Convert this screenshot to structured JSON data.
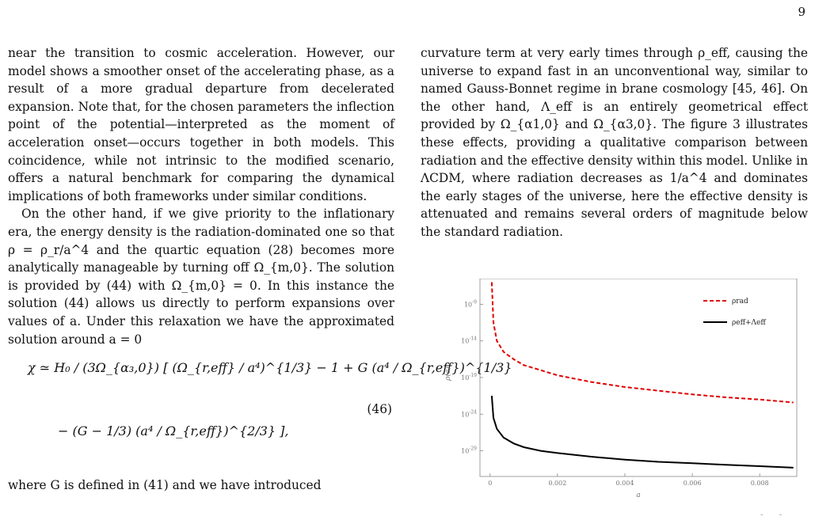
{
  "page": {
    "number": "9"
  },
  "left_column": {
    "para1": "near the transition to cosmic acceleration. However, our model shows a smoother onset of the accelerating phase, as a result of a more gradual departure from decelerated expansion. Note that, for the chosen parameters the inflection point of the potential—interpreted as the moment of acceleration onset—occurs together in both models. This coincidence, while not intrinsic to the modified scenario, offers a natural benchmark for comparing the dynamical implications of both frameworks under similar conditions.",
    "para2": "On the other hand, if we give priority to the inflationary era, the energy density is the radiation-dominated one so that ρ = ρ_r/a^4 and the quartic equation (28) becomes more analytically manageable by turning off Ω_{m,0}. The solution is provided by (44) with Ω_{m,0} = 0. In this instance the solution (44) allows us directly to perform expansions over values of a. Under this relaxation we have the approximated solution around a = 0",
    "equation_line1": "χ ≃ H₀ / (3Ω_{α₃,0}) [ (Ω_{r,eff} / a⁴)^{1/3} − 1 + G (a⁴ / Ω_{r,eff})^{1/3}",
    "equation_line2": "− (G − 1/3) (a⁴ / Ω_{r,eff})^{2/3} ],",
    "equation_number": "(46)",
    "para3": "where G is defined in (41) and we have introduced"
  },
  "right_column": {
    "para1": "curvature term at very early times through ρ_eff, causing the universe to expand fast in an unconventional way, similar to named Gauss-Bonnet regime in brane cosmology [45, 46]. On the other hand, Λ_eff is an entirely geometrical effect provided by Ω_{α1,0} and Ω_{α3,0}. The figure 3 illustrates these effects, providing a qualitative comparison between radiation and the effective density within this model. Unlike in ΛCDM, where radiation decreases as 1/a^4 and dominates the early stages of the universe, here the effective density is attenuated and remains several orders of magnitude below the standard radiation."
  },
  "chart_data": {
    "type": "line",
    "xlabel": "a",
    "ylabel": "ρ(a)",
    "x_ticks": [
      "0",
      "0.002",
      "0.004",
      "0.006",
      "0.008"
    ],
    "y_ticks": [
      "10^-9",
      "10^-14",
      "10^-19",
      "10^-24",
      "10^-29"
    ],
    "xlim": [
      -0.0003,
      0.0091
    ],
    "ylim_log10": [
      -32.5,
      -5.5
    ],
    "y_scale": "log",
    "legend_position": "top-right",
    "series": [
      {
        "name": "ρrad",
        "style": "dashed",
        "color": "#e00000",
        "points": [
          [
            5e-05,
            -6.0
          ],
          [
            0.0001,
            -11.5
          ],
          [
            0.0002,
            -14.0
          ],
          [
            0.0004,
            -15.5
          ],
          [
            0.0007,
            -16.5
          ],
          [
            0.001,
            -17.3
          ],
          [
            0.0015,
            -18.0
          ],
          [
            0.002,
            -18.7
          ],
          [
            0.003,
            -19.6
          ],
          [
            0.004,
            -20.3
          ],
          [
            0.005,
            -20.8
          ],
          [
            0.006,
            -21.3
          ],
          [
            0.007,
            -21.7
          ],
          [
            0.008,
            -22.0
          ],
          [
            0.009,
            -22.4
          ]
        ]
      },
      {
        "name": "ρeff+Λeff",
        "style": "solid",
        "color": "#000000",
        "points": [
          [
            5e-05,
            -21.5
          ],
          [
            0.0001,
            -24.5
          ],
          [
            0.0002,
            -26.0
          ],
          [
            0.0004,
            -27.2
          ],
          [
            0.0007,
            -28.0
          ],
          [
            0.001,
            -28.5
          ],
          [
            0.0015,
            -29.0
          ],
          [
            0.002,
            -29.3
          ],
          [
            0.003,
            -29.8
          ],
          [
            0.004,
            -30.2
          ],
          [
            0.005,
            -30.5
          ],
          [
            0.006,
            -30.7
          ],
          [
            0.007,
            -30.9
          ],
          [
            0.008,
            -31.1
          ],
          [
            0.009,
            -31.3
          ]
        ]
      }
    ]
  }
}
